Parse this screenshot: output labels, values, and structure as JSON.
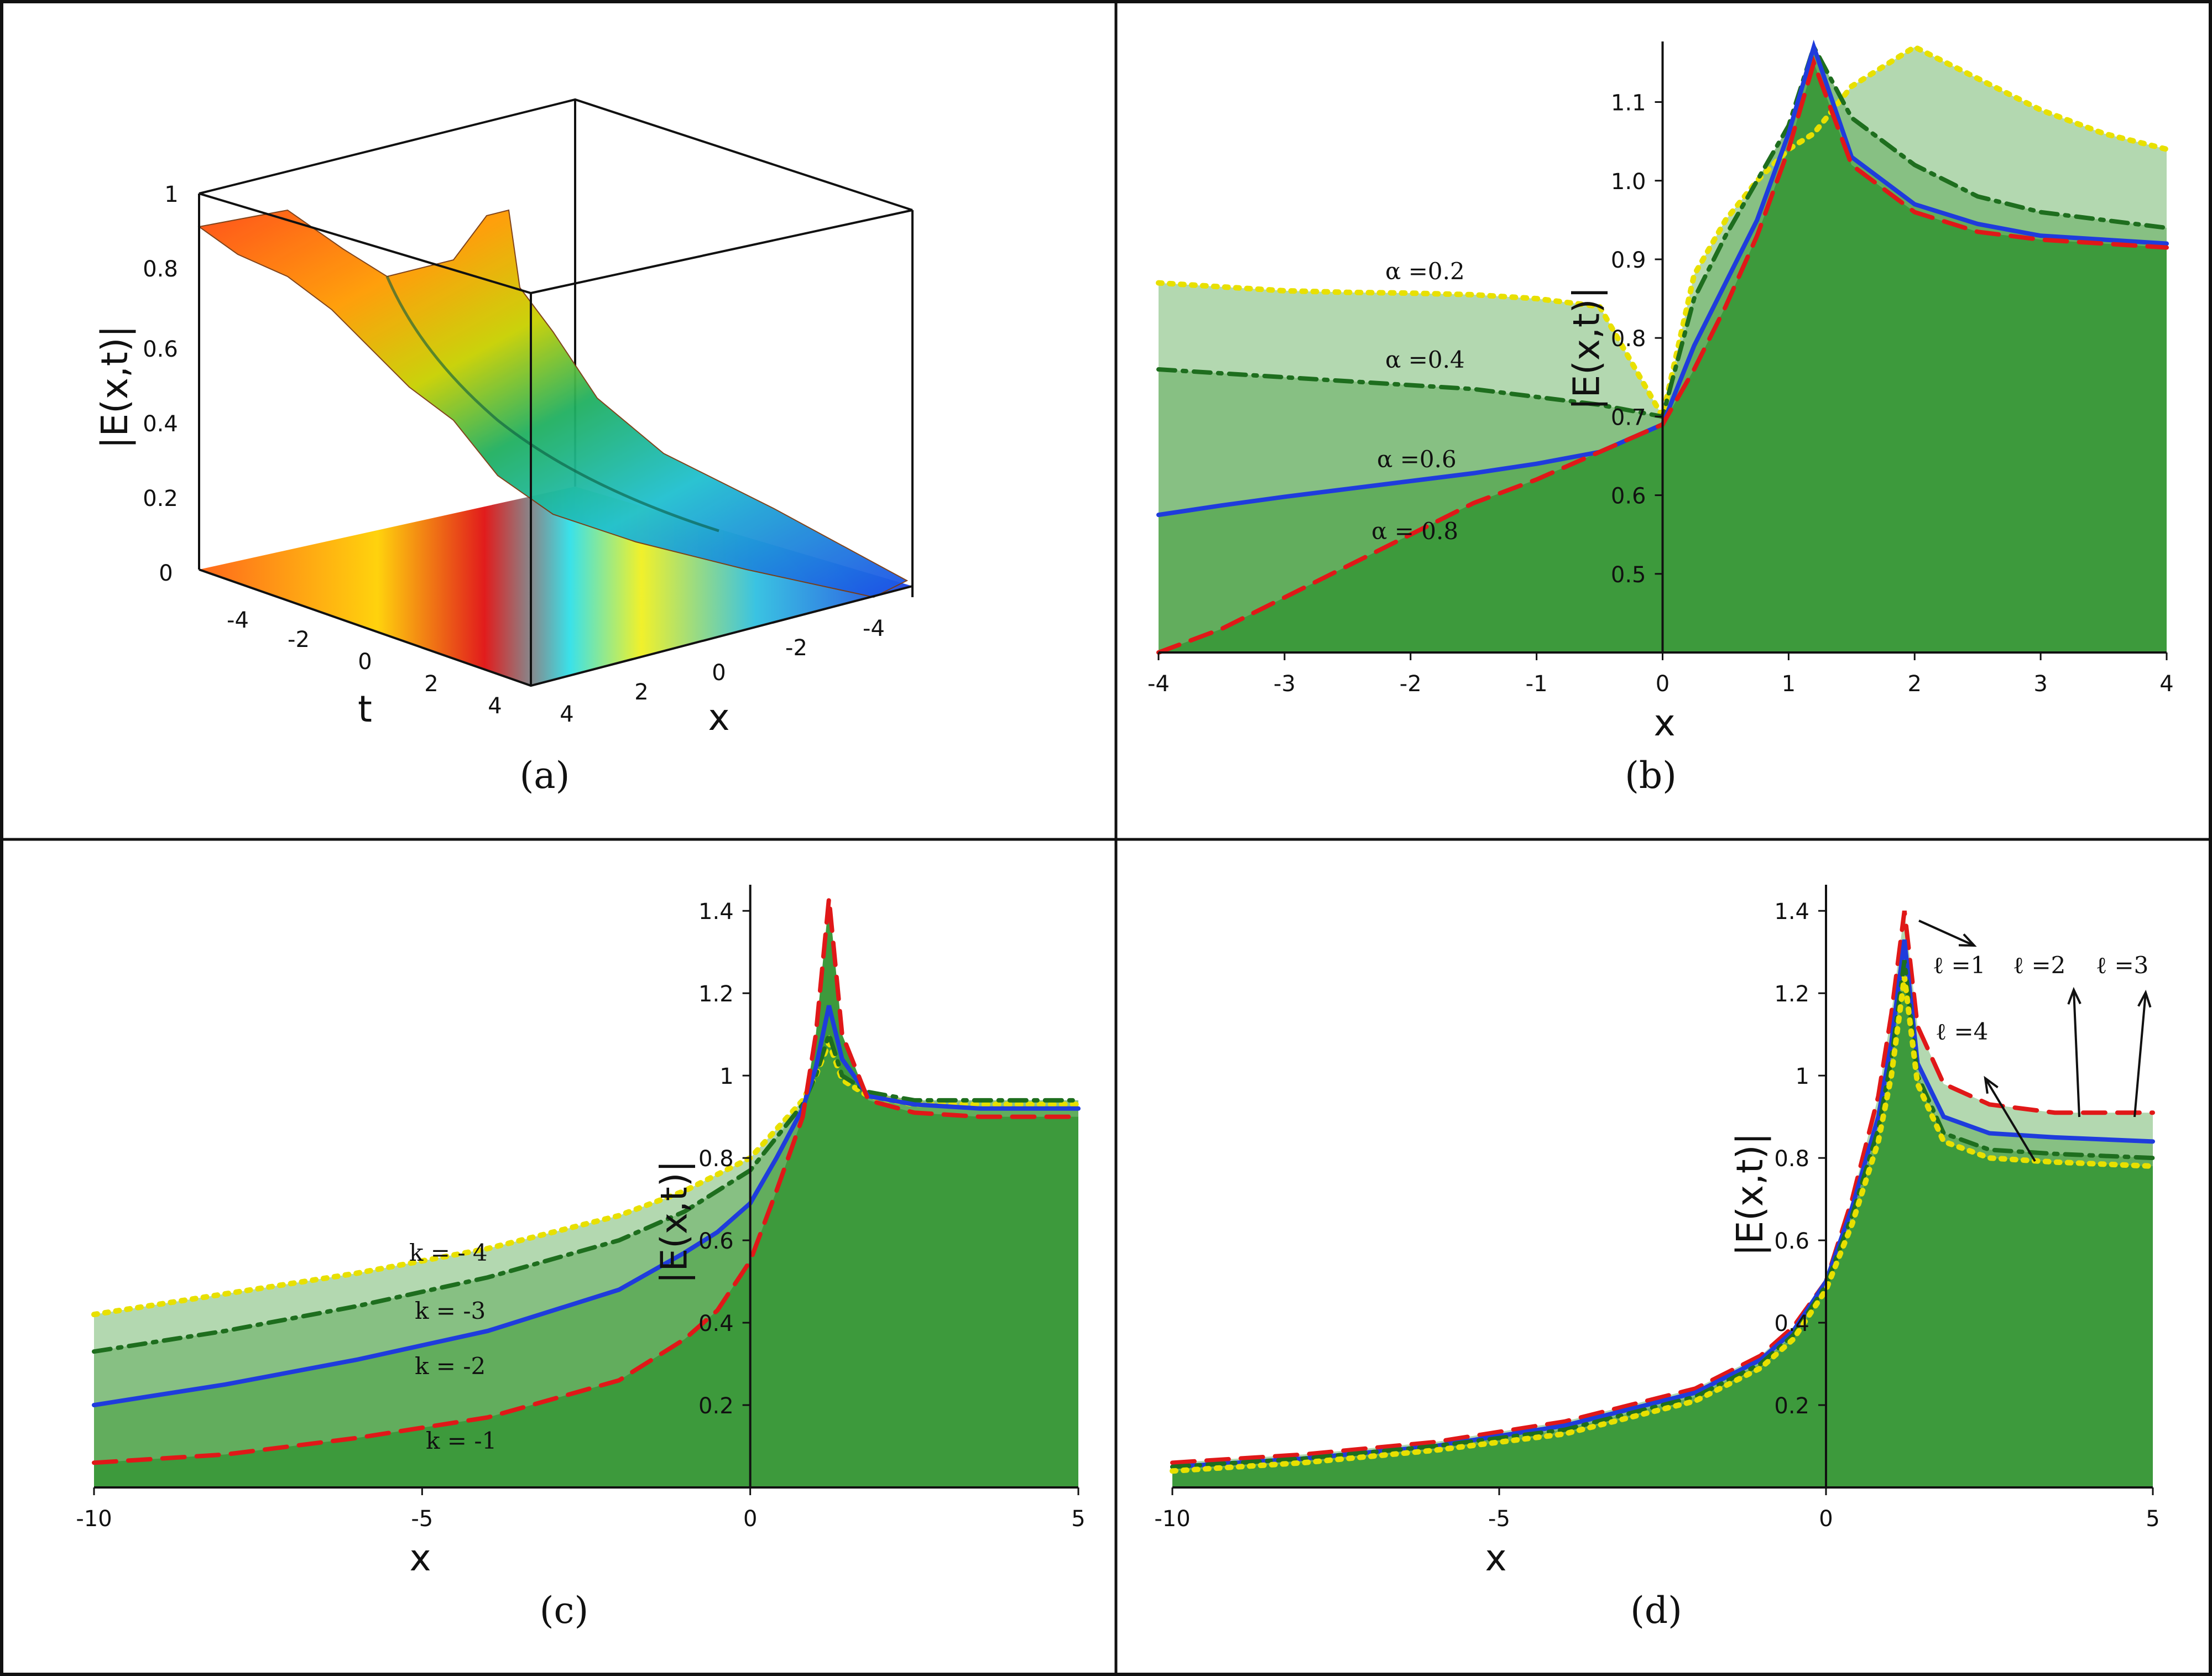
{
  "chart_data": [
    {
      "panel": "a",
      "type": "surface3d",
      "caption": "(a)",
      "zlabel": "|E(x,t)|",
      "xlabel": "x",
      "tlabel": "t",
      "z_ticks": [
        "0",
        "0.2",
        "0.4",
        "0.6",
        "0.8",
        "1"
      ],
      "t_ticks": [
        "-4",
        "-2",
        "0",
        "2",
        "4"
      ],
      "x_ticks": [
        "4",
        "2",
        "0",
        "-2",
        "-4"
      ],
      "x_range": [
        -5,
        5
      ],
      "t_range": [
        -5,
        5
      ],
      "z_range": [
        0,
        1
      ]
    },
    {
      "panel": "b",
      "type": "area",
      "caption": "(b)",
      "xlabel": "x",
      "ylabel": "|E(x,t)|",
      "xlim": [
        -4,
        4
      ],
      "ylim": [
        0.4,
        1.17
      ],
      "x_ticks": [
        "-4",
        "-3",
        "-2",
        "-1",
        "0",
        "1",
        "2",
        "3",
        "4"
      ],
      "y_ticks": [
        "0.5",
        "0.6",
        "0.7",
        "0.8",
        "0.9",
        "1.0",
        "1.1"
      ],
      "x": [
        -4,
        -3.5,
        -3,
        -2.5,
        -2,
        -1.5,
        -1,
        -0.5,
        0,
        0.25,
        0.5,
        0.75,
        1.0,
        1.2,
        1.5,
        2,
        2.5,
        3,
        3.5,
        4
      ],
      "series": [
        {
          "name": "α =0.2",
          "label": "α =0.2",
          "style": "dotted",
          "color": "#e8e000",
          "values": [
            0.87,
            0.865,
            0.86,
            0.858,
            0.857,
            0.855,
            0.85,
            0.84,
            0.7,
            0.88,
            0.95,
            1.0,
            1.04,
            1.06,
            1.12,
            1.17,
            1.13,
            1.09,
            1.06,
            1.04
          ]
        },
        {
          "name": "α =0.4",
          "label": "α =0.4",
          "style": "dashdot",
          "color": "#1e6e1e",
          "values": [
            0.76,
            0.755,
            0.75,
            0.745,
            0.74,
            0.735,
            0.725,
            0.715,
            0.7,
            0.85,
            0.93,
            1.0,
            1.07,
            1.17,
            1.08,
            1.02,
            0.98,
            0.96,
            0.95,
            0.94
          ]
        },
        {
          "name": "α =0.6",
          "label": "α =0.6",
          "style": "solid",
          "color": "#1f3cdc",
          "values": [
            0.575,
            0.587,
            0.598,
            0.608,
            0.618,
            0.628,
            0.64,
            0.655,
            0.69,
            0.79,
            0.87,
            0.95,
            1.06,
            1.17,
            1.03,
            0.97,
            0.945,
            0.93,
            0.925,
            0.92
          ]
        },
        {
          "name": "α =0.8",
          "label": "α = 0.8",
          "style": "dashed",
          "color": "#e01818",
          "values": [
            0.39,
            0.43,
            0.47,
            0.51,
            0.55,
            0.59,
            0.62,
            0.655,
            0.69,
            0.76,
            0.84,
            0.93,
            1.04,
            1.15,
            1.02,
            0.96,
            0.935,
            0.925,
            0.92,
            0.915
          ]
        }
      ]
    },
    {
      "panel": "c",
      "type": "area",
      "caption": "(c)",
      "xlabel": "x",
      "ylabel": "|E(x,t)|",
      "xlim": [
        -10,
        5
      ],
      "ylim": [
        0,
        1.45
      ],
      "x_ticks": [
        "-10",
        "-5",
        "0",
        "5"
      ],
      "y_ticks": [
        "0.2",
        "0.4",
        "0.6",
        "0.8",
        "1",
        "1.2",
        "1.4"
      ],
      "x": [
        -10,
        -8,
        -6,
        -4,
        -2,
        -1,
        -0.5,
        0,
        0.4,
        0.8,
        1.0,
        1.2,
        1.4,
        1.8,
        2.5,
        3.5,
        5
      ],
      "series": [
        {
          "name": "k = - 4",
          "label": "k = - 4",
          "style": "dotted",
          "color": "#e8e000",
          "values": [
            0.42,
            0.47,
            0.52,
            0.58,
            0.66,
            0.72,
            0.76,
            0.8,
            0.87,
            0.94,
            1.0,
            1.08,
            0.99,
            0.95,
            0.93,
            0.93,
            0.93
          ]
        },
        {
          "name": "k = -3",
          "label": "k = -3",
          "style": "dashdot",
          "color": "#1e6e1e",
          "values": [
            0.33,
            0.38,
            0.44,
            0.51,
            0.6,
            0.67,
            0.72,
            0.77,
            0.85,
            0.93,
            1.0,
            1.1,
            1.0,
            0.96,
            0.94,
            0.94,
            0.94
          ]
        },
        {
          "name": "k = -2",
          "label": "k = -2",
          "style": "solid",
          "color": "#1f3cdc",
          "values": [
            0.2,
            0.25,
            0.31,
            0.38,
            0.48,
            0.57,
            0.62,
            0.69,
            0.8,
            0.92,
            1.02,
            1.17,
            1.04,
            0.95,
            0.93,
            0.92,
            0.92
          ]
        },
        {
          "name": "k = -1",
          "label": "k = -1",
          "style": "dashed",
          "color": "#e01818",
          "values": [
            0.06,
            0.08,
            0.12,
            0.17,
            0.26,
            0.36,
            0.43,
            0.55,
            0.72,
            0.9,
            1.1,
            1.43,
            1.1,
            0.94,
            0.91,
            0.9,
            0.9
          ]
        }
      ]
    },
    {
      "panel": "d",
      "type": "area",
      "caption": "(d)",
      "xlabel": "x",
      "ylabel": "|E(x,t)|",
      "xlim": [
        -10,
        5
      ],
      "ylim": [
        0,
        1.45
      ],
      "x_ticks": [
        "-10",
        "-5",
        "0",
        "5"
      ],
      "y_ticks": [
        "0.2",
        "0.4",
        "0.6",
        "0.8",
        "1",
        "1.2",
        "1.4"
      ],
      "x": [
        -10,
        -8,
        -6,
        -4,
        -2,
        -1,
        -0.5,
        0,
        0.4,
        0.8,
        1.0,
        1.2,
        1.4,
        1.8,
        2.5,
        3.5,
        5
      ],
      "series": [
        {
          "name": "ℓ =1",
          "label": "ℓ =1",
          "style": "dashed",
          "color": "#e01818",
          "values": [
            0.06,
            0.08,
            0.11,
            0.16,
            0.24,
            0.32,
            0.39,
            0.5,
            0.7,
            0.95,
            1.15,
            1.4,
            1.12,
            0.98,
            0.93,
            0.91,
            0.91
          ]
        },
        {
          "name": "ℓ =2",
          "label": "ℓ =2",
          "style": "solid",
          "color": "#1f3cdc",
          "values": [
            0.05,
            0.07,
            0.1,
            0.15,
            0.23,
            0.31,
            0.38,
            0.5,
            0.68,
            0.9,
            1.08,
            1.33,
            1.03,
            0.9,
            0.86,
            0.85,
            0.84
          ]
        },
        {
          "name": "ℓ =3",
          "label": "ℓ =3",
          "style": "dashdot",
          "color": "#1e6e1e",
          "values": [
            0.05,
            0.07,
            0.1,
            0.14,
            0.22,
            0.3,
            0.37,
            0.49,
            0.66,
            0.87,
            1.04,
            1.28,
            1.0,
            0.86,
            0.82,
            0.81,
            0.8
          ]
        },
        {
          "name": "ℓ =4",
          "label": "ℓ =4",
          "style": "dotted",
          "color": "#e8e000",
          "values": [
            0.04,
            0.06,
            0.09,
            0.13,
            0.21,
            0.29,
            0.36,
            0.48,
            0.64,
            0.84,
            1.0,
            1.24,
            0.98,
            0.84,
            0.8,
            0.79,
            0.78
          ]
        }
      ]
    }
  ]
}
